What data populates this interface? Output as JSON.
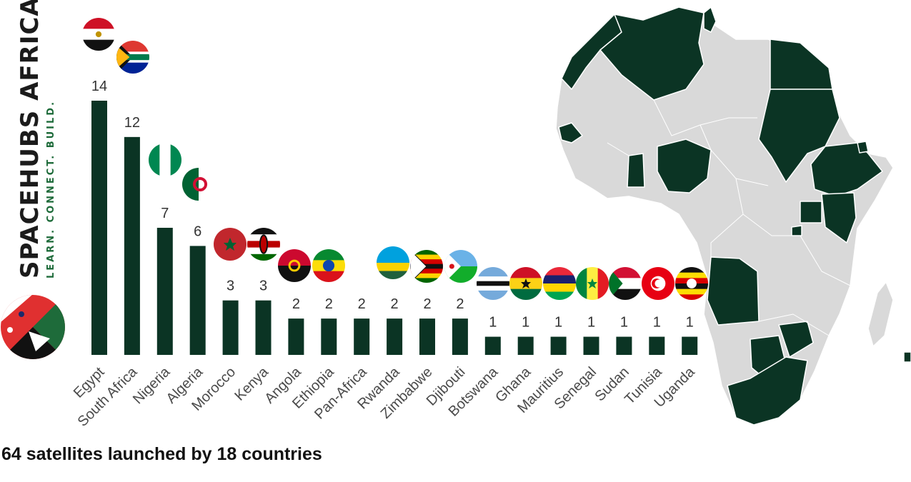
{
  "brand": {
    "name": "SPACEHUBS AFRICA",
    "tagline": "LEARN. CONNECT. BUILD."
  },
  "footer": "64 satellites launched by 18 countries",
  "colors": {
    "bar": "#0b3424",
    "map_highlight": "#0b3424",
    "map_base": "#d9d9d9",
    "label": "#4a4a4a",
    "value": "#333333"
  },
  "chart_data": {
    "type": "bar",
    "title": "",
    "xlabel": "",
    "ylabel": "",
    "ylim": [
      0,
      14
    ],
    "grid": false,
    "legend": "none",
    "categories": [
      "Egypt",
      "South Africa",
      "Nigeria",
      "Algeria",
      "Morocco",
      "Kenya",
      "Angola",
      "Ethiopia",
      "Pan-Africa",
      "Rwanda",
      "Zimbabwe",
      "Djibouti",
      "Botswana",
      "Ghana",
      "Mauritius",
      "Senegal",
      "Sudan",
      "Tunisia",
      "Uganda"
    ],
    "values": [
      14,
      12,
      7,
      6,
      3,
      3,
      2,
      2,
      2,
      2,
      2,
      2,
      1,
      1,
      1,
      1,
      1,
      1,
      1
    ],
    "flags": [
      "egypt-flag-icon",
      "south-africa-flag-icon",
      "nigeria-flag-icon",
      "algeria-flag-icon",
      "morocco-flag-icon",
      "kenya-flag-icon",
      "angola-flag-icon",
      "ethiopia-flag-icon",
      null,
      "rwanda-flag-icon",
      "zimbabwe-flag-icon",
      "djibouti-flag-icon",
      "botswana-flag-icon",
      "ghana-flag-icon",
      "mauritius-flag-icon",
      "senegal-flag-icon",
      "sudan-flag-icon",
      "tunisia-flag-icon",
      "uganda-flag-icon"
    ]
  }
}
